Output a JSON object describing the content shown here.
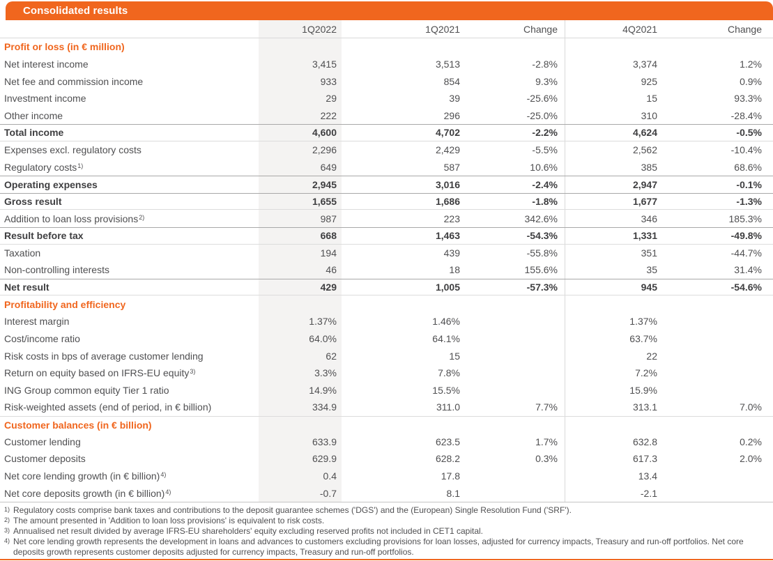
{
  "title": "Consolidated results",
  "columns": [
    "1Q2022",
    "1Q2021",
    "Change",
    "4Q2021",
    "Change"
  ],
  "sections": [
    {
      "header": "Profit or loss (in € million)",
      "rows": [
        {
          "label": "Net interest income",
          "values": [
            "3,415",
            "3,513",
            "-2.8%",
            "3,374",
            "1.2%"
          ]
        },
        {
          "label": "Net fee and commission income",
          "values": [
            "933",
            "854",
            "9.3%",
            "925",
            "0.9%"
          ]
        },
        {
          "label": "Investment income",
          "values": [
            "29",
            "39",
            "-25.6%",
            "15",
            "93.3%"
          ]
        },
        {
          "label": "Other income",
          "values": [
            "222",
            "296",
            "-25.0%",
            "310",
            "-28.4%"
          ]
        },
        {
          "label": "Total income",
          "bold": true,
          "values": [
            "4,600",
            "4,702",
            "-2.2%",
            "4,624",
            "-0.5%"
          ]
        },
        {
          "label": "Expenses excl. regulatory costs",
          "values": [
            "2,296",
            "2,429",
            "-5.5%",
            "2,562",
            "-10.4%"
          ]
        },
        {
          "label": "Regulatory costs",
          "sup": "1)",
          "values": [
            "649",
            "587",
            "10.6%",
            "385",
            "68.6%"
          ]
        },
        {
          "label": "Operating expenses",
          "bold": true,
          "values": [
            "2,945",
            "3,016",
            "-2.4%",
            "2,947",
            "-0.1%"
          ]
        },
        {
          "label": "Gross result",
          "bold": true,
          "values": [
            "1,655",
            "1,686",
            "-1.8%",
            "1,677",
            "-1.3%"
          ]
        },
        {
          "label": "Addition to loan loss provisions",
          "sup": "2)",
          "values": [
            "987",
            "223",
            "342.6%",
            "346",
            "185.3%"
          ]
        },
        {
          "label": "Result before tax",
          "bold": true,
          "values": [
            "668",
            "1,463",
            "-54.3%",
            "1,331",
            "-49.8%"
          ]
        },
        {
          "label": "Taxation",
          "values": [
            "194",
            "439",
            "-55.8%",
            "351",
            "-44.7%"
          ]
        },
        {
          "label": "Non-controlling interests",
          "values": [
            "46",
            "18",
            "155.6%",
            "35",
            "31.4%"
          ]
        },
        {
          "label": "Net result",
          "bold": true,
          "values": [
            "429",
            "1,005",
            "-57.3%",
            "945",
            "-54.6%"
          ]
        }
      ]
    },
    {
      "header": "Profitability and efficiency",
      "rows": [
        {
          "label": "Interest margin",
          "values": [
            "1.37%",
            "1.46%",
            "",
            "1.37%",
            ""
          ]
        },
        {
          "label": "Cost/income ratio",
          "values": [
            "64.0%",
            "64.1%",
            "",
            "63.7%",
            ""
          ]
        },
        {
          "label": "Risk costs in bps of average customer lending",
          "values": [
            "62",
            "15",
            "",
            "22",
            ""
          ]
        },
        {
          "label": "Return on equity based on IFRS-EU equity",
          "sup": "3)",
          "values": [
            "3.3%",
            "7.8%",
            "",
            "7.2%",
            ""
          ]
        },
        {
          "label": "ING Group common equity Tier 1 ratio",
          "values": [
            "14.9%",
            "15.5%",
            "",
            "15.9%",
            ""
          ]
        },
        {
          "label": "Risk-weighted assets (end of period, in € billion)",
          "values": [
            "334.9",
            "311.0",
            "7.7%",
            "313.1",
            "7.0%"
          ]
        }
      ]
    },
    {
      "header": "Customer balances (in € billion)",
      "rows": [
        {
          "label": "Customer lending",
          "values": [
            "633.9",
            "623.5",
            "1.7%",
            "632.8",
            "0.2%"
          ]
        },
        {
          "label": "Customer deposits",
          "values": [
            "629.9",
            "628.2",
            "0.3%",
            "617.3",
            "2.0%"
          ]
        },
        {
          "label": "Net core lending growth (in € billion)",
          "sup": "4)",
          "values": [
            "0.4",
            "17.8",
            "",
            "13.4",
            ""
          ]
        },
        {
          "label": "Net core deposits growth (in € billion)",
          "sup": "4)",
          "values": [
            "-0.7",
            "8.1",
            "",
            "-2.1",
            ""
          ]
        }
      ]
    }
  ],
  "footnotes": [
    {
      "sup": "1)",
      "text": "Regulatory costs comprise bank taxes and contributions to the deposit guarantee schemes ('DGS') and the (European) Single Resolution Fund ('SRF')."
    },
    {
      "sup": "2)",
      "text": "The amount presented in 'Addition to loan loss provisions' is equivalent to risk costs."
    },
    {
      "sup": "3)",
      "text": "Annualised net result divided by average IFRS-EU shareholders' equity excluding reserved profits not included in CET1 capital."
    },
    {
      "sup": "4)",
      "text": "Net core lending growth represents the development in loans and advances to customers excluding provisions for loan losses, adjusted for currency impacts, Treasury and run-off portfolios. Net core deposits growth represents customer deposits adjusted for currency impacts, Treasury and run-off portfolios."
    }
  ],
  "colors": {
    "accent": "#f0661e",
    "text": "#4f4f51",
    "bold_text": "#3e3e40",
    "column_highlight": "#f4f3f2",
    "border_light": "#dcdcdc",
    "border_dark": "#a8a8a8"
  }
}
